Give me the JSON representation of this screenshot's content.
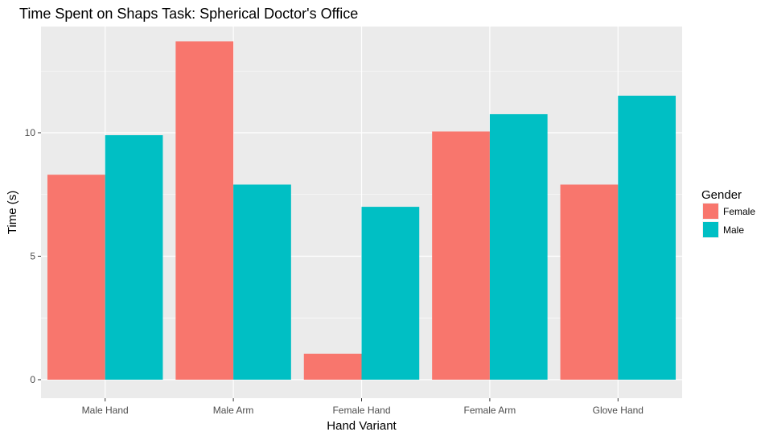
{
  "chart_data": {
    "type": "bar",
    "title": "Time Spent on Shaps Task: Spherical Doctor's Office",
    "xlabel": "Hand Variant",
    "ylabel": "Time (s)",
    "categories": [
      "Male Hand",
      "Male Arm",
      "Female Hand",
      "Female Arm",
      "Glove Hand"
    ],
    "series": [
      {
        "name": "Female",
        "color": "#F8766D",
        "values": [
          8.3,
          13.7,
          1.05,
          10.05,
          7.9
        ]
      },
      {
        "name": "Male",
        "color": "#00BFC4",
        "values": [
          9.9,
          7.9,
          7.0,
          10.75,
          11.5
        ]
      }
    ],
    "ylim": [
      -0.75,
      14.3
    ],
    "yticks": [
      0,
      5,
      10
    ],
    "ytick_labels": [
      "0",
      "5",
      "10"
    ],
    "grid": true,
    "panel_background": "#EBEBEB",
    "legend": {
      "title": "Gender",
      "position": "right"
    }
  }
}
